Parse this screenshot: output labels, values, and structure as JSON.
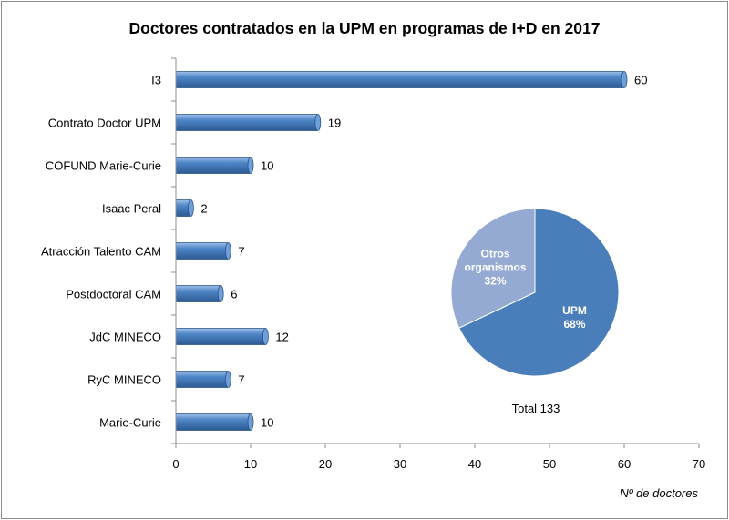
{
  "chart_data": [
    {
      "type": "bar",
      "orientation": "horizontal",
      "title": "Doctores contratados  en la UPM en programas  de I+D en 2017",
      "categories": [
        "I3",
        "Contrato Doctor UPM",
        "COFUND Marie-Curie",
        "Isaac Peral",
        "Atracción Talento CAM",
        "Postdoctoral CAM",
        "JdC MINECO",
        "RyC MINECO",
        "Marie-Curie"
      ],
      "values": [
        60,
        19,
        10,
        2,
        7,
        6,
        12,
        7,
        10
      ],
      "xlabel": "Nº de doctores",
      "ylabel": "",
      "xlim": [
        0,
        70
      ],
      "xticks": [
        0,
        10,
        20,
        30,
        40,
        50,
        60,
        70
      ],
      "grid": false,
      "bar_color": "#4a7ebb",
      "data_labels": [
        "60",
        "19",
        "10",
        "2",
        "7",
        "6",
        "12",
        "7",
        "10"
      ]
    },
    {
      "type": "pie",
      "labels": [
        "UPM",
        "Otros organismos"
      ],
      "values": [
        68,
        32
      ],
      "slice_labels": [
        {
          "name": "UPM",
          "pct": "68%"
        },
        {
          "name": "Otros organismos",
          "pct": "32%"
        }
      ],
      "colors": [
        "#4a7ebb",
        "#95aad2"
      ],
      "note": "Total 133"
    }
  ]
}
